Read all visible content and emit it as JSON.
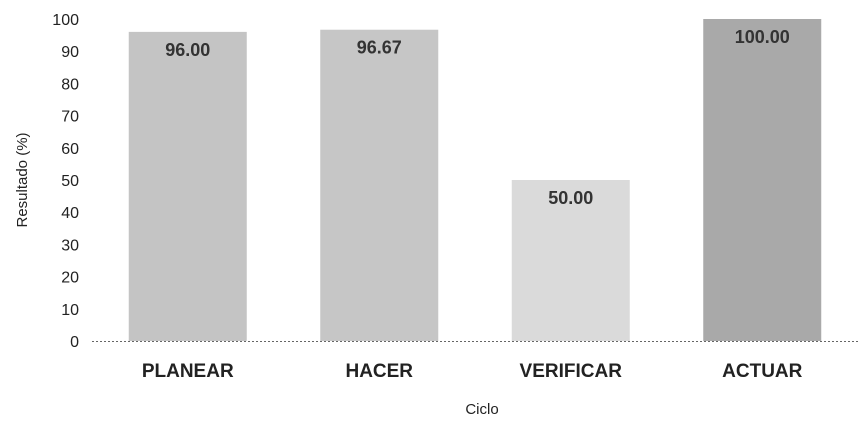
{
  "chart_data": {
    "type": "bar",
    "title": "",
    "xlabel": "Ciclo",
    "ylabel": "Resultado (%)",
    "categories": [
      "PLANEAR",
      "HACER",
      "VERIFICAR",
      "ACTUAR"
    ],
    "values": [
      96.0,
      96.67,
      50.0,
      100.0
    ],
    "value_labels": [
      "96.00",
      "96.67",
      "50.00",
      "100.00"
    ],
    "yticks": [
      "0",
      "10",
      "20",
      "30",
      "40",
      "50",
      "60",
      "70",
      "80",
      "90",
      "100"
    ],
    "ylim": [
      0,
      100
    ],
    "grid": false,
    "legend": "none",
    "bar_colors": [
      "#c4c4c4",
      "#c6c6c6",
      "#dadada",
      "#a9a9a9"
    ],
    "axis_color": "#666666"
  }
}
